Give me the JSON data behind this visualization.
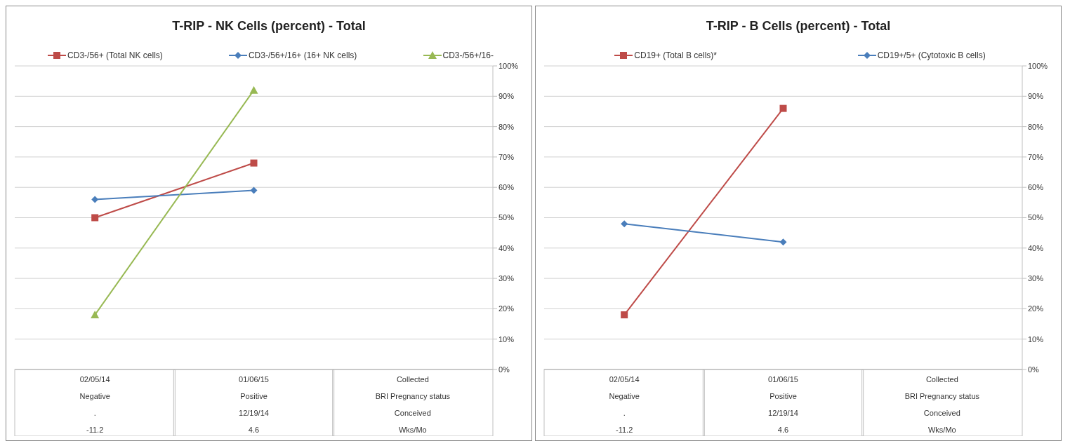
{
  "chart_data": [
    {
      "type": "line",
      "title": "T-RIP - NK Cells (percent) - Total",
      "categories": [
        "02/05/14\nNegative\n.\n-11.2",
        "01/06/15\nPositive\n12/19/14\n4.6",
        "Collected\nBRI Pregnancy status\nConceived\nWks/Mo"
      ],
      "series": [
        {
          "name": "CD3-/56+ (Total NK cells)",
          "color": "#be4b48",
          "marker": "square",
          "values": [
            50,
            68,
            null
          ]
        },
        {
          "name": "CD3-/56+/16+ (16+ NK cells)",
          "color": "#4a7ebb",
          "marker": "diamond",
          "values": [
            56,
            59,
            null
          ]
        },
        {
          "name": "CD3-/56+/16-",
          "color": "#98b954",
          "marker": "triangle",
          "values": [
            18,
            92,
            null
          ]
        }
      ],
      "ylim": [
        0,
        100
      ],
      "yticks": [
        {
          "value": 0,
          "label": "0%"
        },
        {
          "value": 10,
          "label": "10%"
        },
        {
          "value": 20,
          "label": "20%"
        },
        {
          "value": 30,
          "label": "30%"
        },
        {
          "value": 40,
          "label": "40%"
        },
        {
          "value": 50,
          "label": "50%"
        },
        {
          "value": 60,
          "label": "60%"
        },
        {
          "value": 70,
          "label": "70%"
        },
        {
          "value": 80,
          "label": "80%"
        },
        {
          "value": 90,
          "label": "90%"
        },
        {
          "value": 100,
          "label": "100%"
        }
      ],
      "grid": "y",
      "legend": "top"
    },
    {
      "type": "line",
      "title": "T-RIP - B Cells (percent) - Total",
      "categories": [
        "02/05/14\nNegative\n.\n-11.2",
        "01/06/15\nPositive\n12/19/14\n4.6",
        "Collected\nBRI Pregnancy status\nConceived\nWks/Mo"
      ],
      "series": [
        {
          "name": "CD19+ (Total B cells)*",
          "color": "#be4b48",
          "marker": "square",
          "values": [
            18,
            86,
            null
          ]
        },
        {
          "name": "CD19+/5+ (Cytotoxic B cells)",
          "color": "#4a7ebb",
          "marker": "diamond",
          "values": [
            48,
            42,
            null
          ]
        }
      ],
      "ylim": [
        0,
        100
      ],
      "yticks": [
        {
          "value": 0,
          "label": "0%"
        },
        {
          "value": 10,
          "label": "10%"
        },
        {
          "value": 20,
          "label": "20%"
        },
        {
          "value": 30,
          "label": "30%"
        },
        {
          "value": 40,
          "label": "40%"
        },
        {
          "value": 50,
          "label": "50%"
        },
        {
          "value": 60,
          "label": "60%"
        },
        {
          "value": 70,
          "label": "70%"
        },
        {
          "value": 80,
          "label": "80%"
        },
        {
          "value": 90,
          "label": "90%"
        },
        {
          "value": 100,
          "label": "100%"
        }
      ],
      "grid": "y",
      "legend": "top"
    }
  ]
}
